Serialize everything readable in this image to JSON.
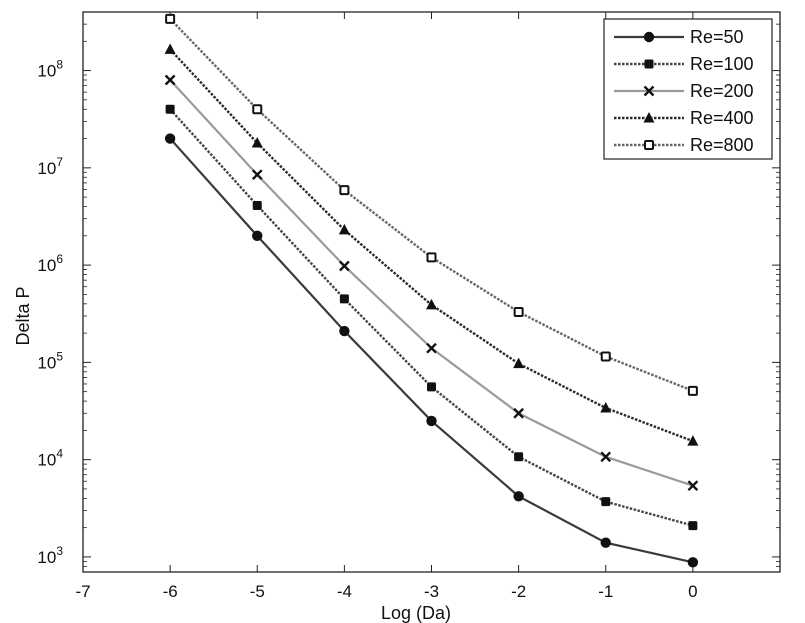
{
  "chart_data": {
    "type": "line",
    "title": "",
    "xlabel": "Log (Da)",
    "ylabel": "Delta P",
    "xlim": [
      -7,
      1
    ],
    "ylim": [
      700,
      400000000
    ],
    "yscale": "log",
    "grid": false,
    "legend_position": "top-right",
    "x": [
      -6,
      -5,
      -4,
      -3,
      -2,
      -1,
      0
    ],
    "x_ticks": [
      "-7",
      "-6",
      "-5",
      "-4",
      "-3",
      "-2",
      "-1",
      "0"
    ],
    "y_ticks": [
      {
        "base": "10",
        "exp": "3"
      },
      {
        "base": "10",
        "exp": "4"
      },
      {
        "base": "10",
        "exp": "5"
      },
      {
        "base": "10",
        "exp": "6"
      },
      {
        "base": "10",
        "exp": "7"
      },
      {
        "base": "10",
        "exp": "8"
      }
    ],
    "series": [
      {
        "name": "Re=50",
        "marker": "circle",
        "line": "solid",
        "color": "#3a3a3a",
        "values": [
          20000000,
          2000000,
          210000,
          25000,
          4200,
          1400,
          880
        ]
      },
      {
        "name": "Re=100",
        "marker": "square",
        "line": "dotted",
        "color": "#444444",
        "values": [
          40000000,
          4100000,
          450000,
          56000,
          10700,
          3700,
          2100
        ]
      },
      {
        "name": "Re=200",
        "marker": "x",
        "line": "light",
        "color": "#9a9a9a",
        "values": [
          80000000,
          8500000,
          980000,
          140000,
          30000,
          10700,
          5400
        ]
      },
      {
        "name": "Re=400",
        "marker": "triangle",
        "line": "dotted",
        "color": "#2a2a2a",
        "values": [
          165000000,
          18000000,
          2300000,
          390000,
          97000,
          34000,
          15500
        ]
      },
      {
        "name": "Re=800",
        "marker": "open-square",
        "line": "dotted",
        "color": "#666666",
        "values": [
          340000000,
          40000000,
          5900000,
          1200000,
          330000,
          115000,
          51000
        ]
      }
    ]
  }
}
